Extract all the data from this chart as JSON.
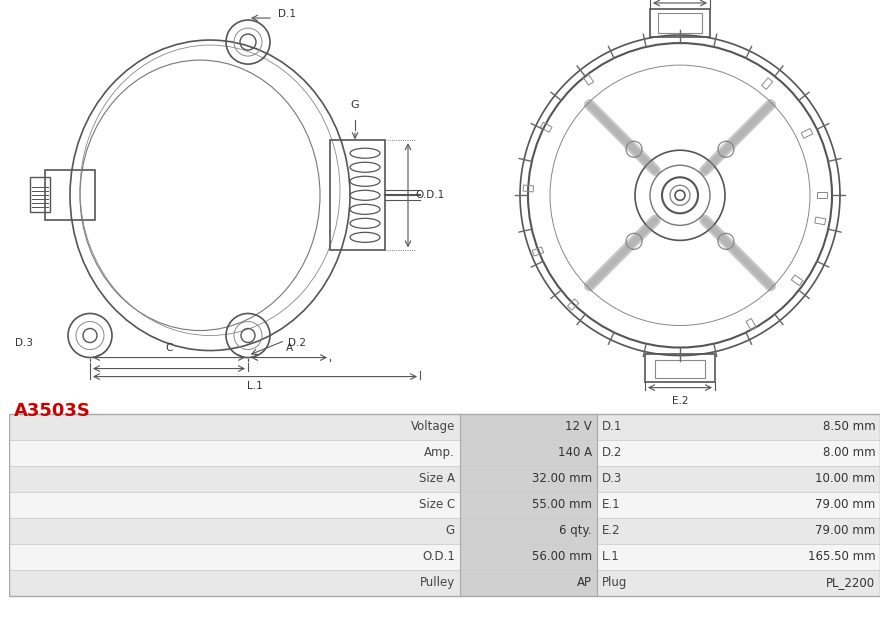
{
  "title": "A3503S",
  "title_color": "#cc0000",
  "background_color": "#ffffff",
  "table": {
    "left_labels": [
      "Voltage",
      "Amp.",
      "Size A",
      "Size C",
      "G",
      "O.D.1",
      "Pulley"
    ],
    "left_values": [
      "12 V",
      "140 A",
      "32.00 mm",
      "55.00 mm",
      "6 qty.",
      "56.00 mm",
      "AP"
    ],
    "right_labels": [
      "D.1",
      "D.2",
      "D.3",
      "E.1",
      "E.2",
      "L.1",
      "Plug"
    ],
    "right_values": [
      "8.50 mm",
      "8.00 mm",
      "10.00 mm",
      "79.00 mm",
      "79.00 mm",
      "165.50 mm",
      "PL_2200"
    ]
  },
  "row_colors": [
    "#e8e8e8",
    "#f5f5f5"
  ],
  "header_divider_color": "#cccccc",
  "table_border_color": "#aaaaaa",
  "text_color": "#333333",
  "mid_label_bg": "#d8d8d8"
}
